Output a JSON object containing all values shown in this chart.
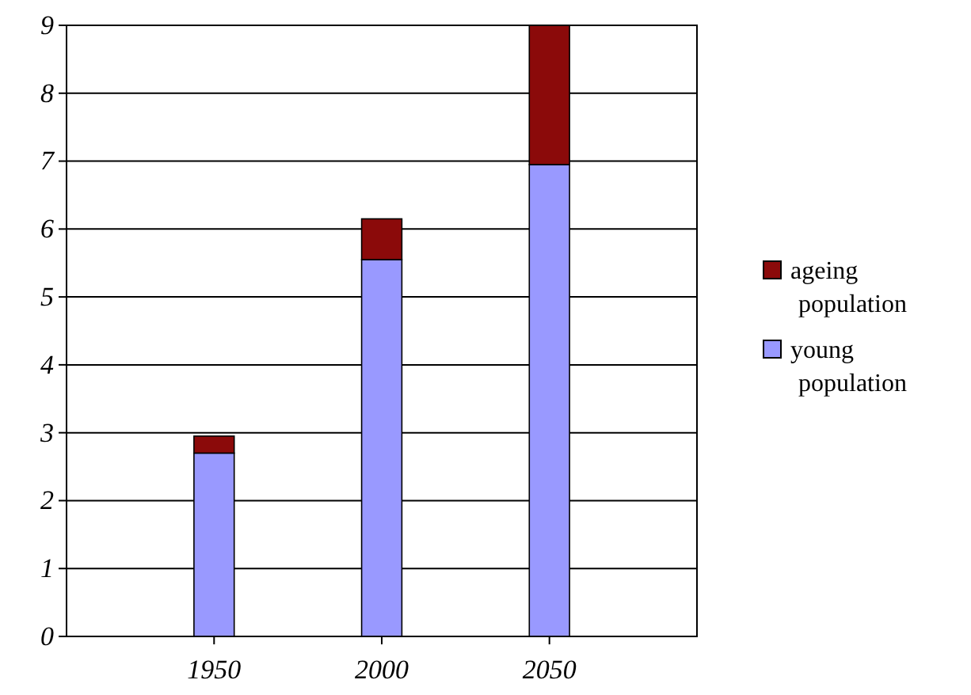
{
  "chart_data": {
    "type": "bar",
    "stacked": true,
    "categories": [
      "1950",
      "2000",
      "2050"
    ],
    "series": [
      {
        "name": "young population",
        "color": "#9999ff",
        "values": [
          2.7,
          5.55,
          6.95
        ]
      },
      {
        "name": "ageing population",
        "color": "#8b0a0a",
        "values": [
          0.25,
          0.6,
          2.05
        ]
      }
    ],
    "ylim": [
      0,
      9
    ],
    "yticks": [
      0,
      1,
      2,
      3,
      4,
      5,
      6,
      7,
      8,
      9
    ],
    "grid": "y",
    "legend": "right"
  }
}
